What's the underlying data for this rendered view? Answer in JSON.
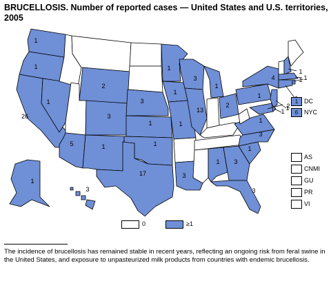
{
  "title": "BRUCELLOSIS. Number of reported cases — United States and U.S. territories, 2005",
  "colors": {
    "reported": "#6f8fd6",
    "zero": "#ffffff",
    "border": "#000000"
  },
  "states": [
    {
      "abbr": "WA",
      "cases": 1
    },
    {
      "abbr": "OR",
      "cases": 1
    },
    {
      "abbr": "CA",
      "cases": 26
    },
    {
      "abbr": "NV",
      "cases": 1
    },
    {
      "abbr": "ID",
      "cases": 0
    },
    {
      "abbr": "MT",
      "cases": 0
    },
    {
      "abbr": "WY",
      "cases": 2
    },
    {
      "abbr": "UT",
      "cases": 0
    },
    {
      "abbr": "AZ",
      "cases": 5
    },
    {
      "abbr": "CO",
      "cases": 3
    },
    {
      "abbr": "NM",
      "cases": 1
    },
    {
      "abbr": "ND",
      "cases": 0
    },
    {
      "abbr": "SD",
      "cases": 0
    },
    {
      "abbr": "NE",
      "cases": 3
    },
    {
      "abbr": "KS",
      "cases": 1
    },
    {
      "abbr": "OK",
      "cases": 1
    },
    {
      "abbr": "TX",
      "cases": 17
    },
    {
      "abbr": "MN",
      "cases": 1
    },
    {
      "abbr": "IA",
      "cases": 1
    },
    {
      "abbr": "MO",
      "cases": 1
    },
    {
      "abbr": "AR",
      "cases": 0
    },
    {
      "abbr": "LA",
      "cases": 3
    },
    {
      "abbr": "WI",
      "cases": 3
    },
    {
      "abbr": "IL",
      "cases": 13
    },
    {
      "abbr": "MI",
      "cases": 1
    },
    {
      "abbr": "IN",
      "cases": 0
    },
    {
      "abbr": "OH",
      "cases": 2
    },
    {
      "abbr": "KY",
      "cases": 0
    },
    {
      "abbr": "TN",
      "cases": 0
    },
    {
      "abbr": "MS",
      "cases": 0
    },
    {
      "abbr": "AL",
      "cases": 1
    },
    {
      "abbr": "GA",
      "cases": 3
    },
    {
      "abbr": "FL",
      "cases": 3
    },
    {
      "abbr": "SC",
      "cases": 1
    },
    {
      "abbr": "NC",
      "cases": 3
    },
    {
      "abbr": "VA",
      "cases": 1
    },
    {
      "abbr": "WV",
      "cases": 0
    },
    {
      "abbr": "PA",
      "cases": 1
    },
    {
      "abbr": "NY",
      "cases": 4
    },
    {
      "abbr": "VT",
      "cases": 0
    },
    {
      "abbr": "NH",
      "cases": 1
    },
    {
      "abbr": "ME",
      "cases": 0
    },
    {
      "abbr": "MA",
      "cases": 1
    },
    {
      "abbr": "RI",
      "cases": 1
    },
    {
      "abbr": "CT",
      "cases": 1
    },
    {
      "abbr": "NJ",
      "cases": 1
    },
    {
      "abbr": "DE",
      "cases": 1
    },
    {
      "abbr": "MD",
      "cases": 2
    },
    {
      "abbr": "AK",
      "cases": 1
    },
    {
      "abbr": "HI",
      "cases": 3
    }
  ],
  "side_boxes": [
    {
      "label": "DC",
      "value": "1",
      "reported": true
    },
    {
      "label": "NYC",
      "value": "6",
      "reported": true
    }
  ],
  "territories": [
    {
      "label": "AS",
      "reported": false
    },
    {
      "label": "CNMI",
      "reported": false
    },
    {
      "label": "GU",
      "reported": false
    },
    {
      "label": "PR",
      "reported": false
    },
    {
      "label": "VI",
      "reported": false
    }
  ],
  "legend": {
    "zero_label": "0",
    "reported_label": "≥1"
  },
  "footnote": "The incidence of brucellosis has remained stable in recent years, reflecting an ongoing risk from feral swine in the United States, and exposure to unpasteurized milk products from countries with endemic brucellosis."
}
